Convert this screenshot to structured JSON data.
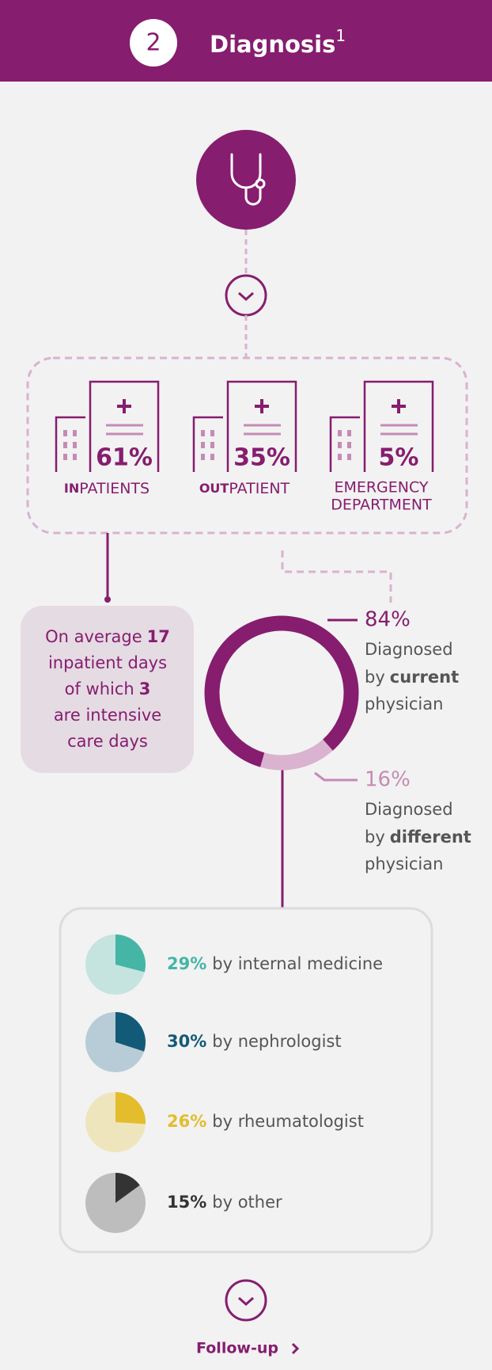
{
  "header": {
    "step": "2",
    "title": "Diagnosis",
    "footnote": "1"
  },
  "care_settings": [
    {
      "prefix": "IN",
      "label": "PATIENTS",
      "share": "61%"
    },
    {
      "prefix": "OUT",
      "label": "PATIENT",
      "share": "35%"
    },
    {
      "label": "EMERGENCY",
      "label_2": "DEPARTMENT",
      "share": "5%"
    }
  ],
  "inpatient_note": {
    "lines": [
      {
        "text": "On average",
        "bold": "17"
      },
      {
        "text": "inpatient days"
      },
      {
        "text": "of which",
        "bold": "3"
      },
      {
        "text": "are intensive"
      },
      {
        "text": "care days"
      }
    ]
  },
  "diagnosis": [
    {
      "share": 84,
      "label": "84%",
      "line1": "Diagnosed",
      "line2": "by",
      "line2_bold": "current",
      "line3": "physician"
    },
    {
      "share": 16,
      "label": "16%",
      "line1": "Diagnosed",
      "line2": "by",
      "line2_bold": "different",
      "line3": "physician"
    }
  ],
  "specialties": [
    {
      "share": 29,
      "label": "29%",
      "text": "by internal medicine"
    },
    {
      "share": 30,
      "label": "30%",
      "text": "by nephrologist"
    },
    {
      "share": 26,
      "label": "26%",
      "text": "by rheumatologist"
    },
    {
      "share": 15,
      "label": "15%",
      "text": "by other"
    }
  ],
  "footer": {
    "link": "Follow-up"
  }
}
